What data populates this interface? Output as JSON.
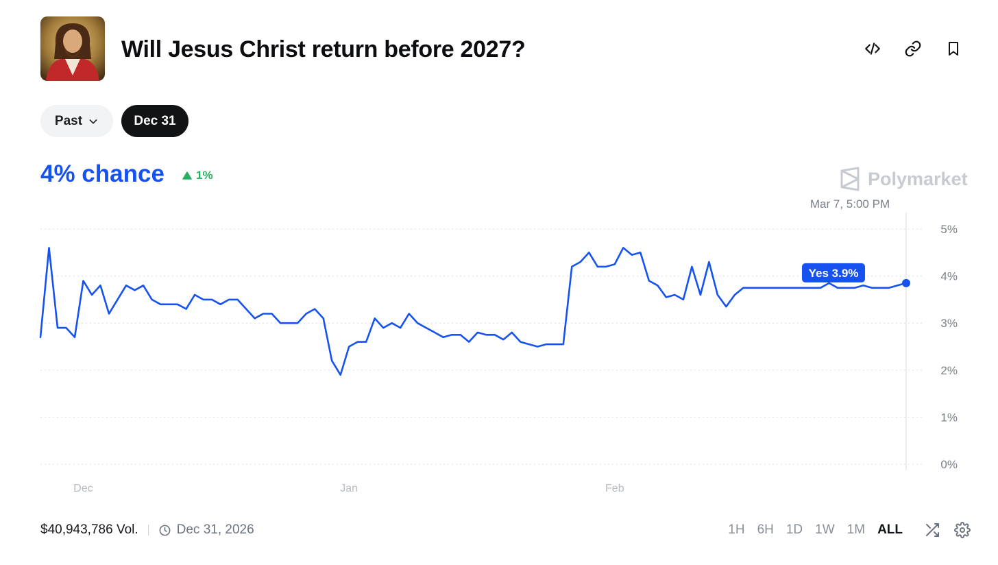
{
  "header": {
    "title": "Will Jesus Christ return before 2027?",
    "icons": [
      "embed-icon",
      "link-icon",
      "bookmark-icon"
    ]
  },
  "filters": {
    "past_label": "Past",
    "selected_date": "Dec 31"
  },
  "summary": {
    "chance": "4% chance",
    "delta": "1%",
    "delta_direction": "up"
  },
  "brand": {
    "name": "Polymarket"
  },
  "chart_data": {
    "type": "line",
    "hover_time": "Mar 7, 5:00 PM",
    "tooltip": "Yes 3.9%",
    "x_ticks": [
      "Dec",
      "Jan",
      "Feb"
    ],
    "y_ticks": [
      "5%",
      "4%",
      "3%",
      "2%",
      "1%",
      "0%"
    ],
    "ylim": [
      0,
      5
    ],
    "grid": true,
    "series": [
      {
        "color": "#1652f0",
        "x": [
          "Nov 26",
          "Nov 27",
          "Nov 28",
          "Nov 29",
          "Nov 30",
          "Dec 1",
          "Dec 2",
          "Dec 3",
          "Dec 4",
          "Dec 5",
          "Dec 6",
          "Dec 7",
          "Dec 8",
          "Dec 9",
          "Dec 10",
          "Dec 11",
          "Dec 12",
          "Dec 13",
          "Dec 14",
          "Dec 15",
          "Dec 16",
          "Dec 17",
          "Dec 18",
          "Dec 19",
          "Dec 20",
          "Dec 21",
          "Dec 22",
          "Dec 23",
          "Dec 24",
          "Dec 25",
          "Dec 26",
          "Dec 27",
          "Dec 28",
          "Dec 29",
          "Dec 30",
          "Dec 31",
          "Jan 1",
          "Jan 2",
          "Jan 3",
          "Jan 4",
          "Jan 5",
          "Jan 6",
          "Jan 7",
          "Jan 8",
          "Jan 9",
          "Jan 10",
          "Jan 11",
          "Jan 12",
          "Jan 13",
          "Jan 14",
          "Jan 15",
          "Jan 16",
          "Jan 17",
          "Jan 18",
          "Jan 19",
          "Jan 20",
          "Jan 21",
          "Jan 22",
          "Jan 23",
          "Jan 24",
          "Jan 25",
          "Jan 26",
          "Jan 27",
          "Jan 28",
          "Jan 29",
          "Jan 30",
          "Jan 31",
          "Feb 1",
          "Feb 2",
          "Feb 3",
          "Feb 4",
          "Feb 5",
          "Feb 6",
          "Feb 7",
          "Feb 8",
          "Feb 9",
          "Feb 10",
          "Feb 11",
          "Feb 12",
          "Feb 13",
          "Feb 14",
          "Feb 15",
          "Feb 16",
          "Feb 17",
          "Feb 18",
          "Feb 19",
          "Feb 20",
          "Feb 21",
          "Feb 22",
          "Feb 23",
          "Feb 24",
          "Feb 25",
          "Feb 26",
          "Feb 27",
          "Feb 28",
          "Mar 1",
          "Mar 2",
          "Mar 3",
          "Mar 4",
          "Mar 5",
          "Mar 6",
          "Mar 7"
        ],
        "values": [
          2.7,
          4.6,
          2.9,
          2.9,
          2.7,
          3.9,
          3.6,
          3.8,
          3.2,
          3.5,
          3.8,
          3.7,
          3.8,
          3.5,
          3.4,
          3.4,
          3.4,
          3.3,
          3.6,
          3.5,
          3.5,
          3.4,
          3.5,
          3.5,
          3.3,
          3.1,
          3.2,
          3.2,
          3.0,
          3.0,
          3.0,
          3.2,
          3.3,
          3.1,
          2.2,
          1.9,
          2.5,
          2.6,
          2.6,
          3.1,
          2.9,
          3.0,
          2.9,
          3.2,
          3.0,
          2.9,
          2.8,
          2.7,
          2.75,
          2.75,
          2.6,
          2.8,
          2.75,
          2.75,
          2.65,
          2.8,
          2.6,
          2.55,
          2.5,
          2.55,
          2.55,
          2.55,
          4.2,
          4.3,
          4.5,
          4.2,
          4.2,
          4.25,
          4.6,
          4.45,
          4.5,
          3.9,
          3.8,
          3.55,
          3.6,
          3.5,
          4.2,
          3.6,
          4.3,
          3.6,
          3.35,
          3.6,
          3.75,
          3.75,
          3.75,
          3.75,
          3.75,
          3.75,
          3.75,
          3.75,
          3.75,
          3.75,
          3.85,
          3.75,
          3.75,
          3.75,
          3.8,
          3.75,
          3.75,
          3.75,
          3.8,
          3.85
        ]
      }
    ]
  },
  "footer": {
    "volume": "$40,943,786 Vol.",
    "end_date": "Dec 31, 2026",
    "ranges": [
      "1H",
      "6H",
      "1D",
      "1W",
      "1M",
      "ALL"
    ],
    "active_range": "ALL"
  }
}
